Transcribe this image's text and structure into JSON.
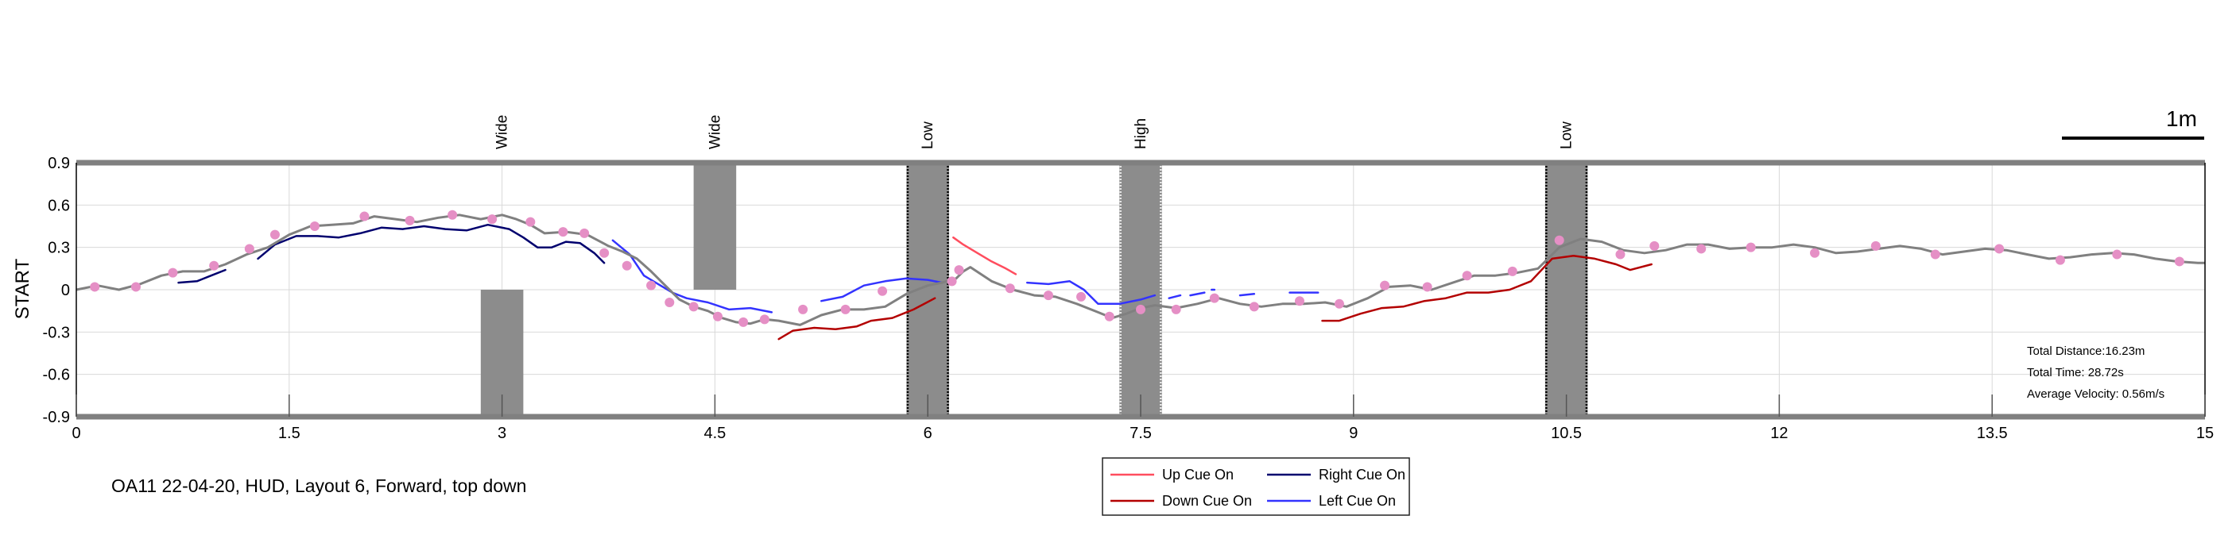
{
  "caption": "OA11 22-04-20, HUD, Layout 6, Forward, top down",
  "scale_bar": {
    "label": "1m"
  },
  "stats": {
    "total_distance": "Total Distance:16.23m",
    "total_time": "Total Time: 28.72s",
    "average_velocity": "Average Velocity: 0.56m/s"
  },
  "colors": {
    "path": "#808080",
    "markers": "#e58fc5",
    "obstacle": "#8c8c8c",
    "up_cue": "#ff4d5e",
    "down_cue": "#b30000",
    "right_cue": "#00006e",
    "left_cue": "#3333ff",
    "boundary": "#808080"
  },
  "chart_data": {
    "type": "line",
    "title": "",
    "xlabel": "",
    "ylabel": "START",
    "xlim": [
      0,
      15
    ],
    "ylim": [
      -0.9,
      0.9
    ],
    "xticks": [
      "0",
      "1.5",
      "3",
      "4.5",
      "6",
      "7.5",
      "9",
      "10.5",
      "12",
      "13.5",
      "15"
    ],
    "xtick_values": [
      0,
      1.5,
      3,
      4.5,
      6,
      7.5,
      9,
      10.5,
      12,
      13.5,
      15
    ],
    "yticks": [
      "0.9",
      "0.6",
      "0.3",
      "0",
      "-0.3",
      "-0.6",
      "-0.9"
    ],
    "ytick_values": [
      0.9,
      0.6,
      0.3,
      0,
      -0.3,
      -0.6,
      -0.9
    ],
    "grid": true,
    "obstacles": [
      {
        "label": "Wide",
        "x": [
          2.85,
          3.15
        ],
        "y": [
          -0.9,
          0.0
        ],
        "style": "plain"
      },
      {
        "label": "Wide",
        "x": [
          4.35,
          4.65
        ],
        "y": [
          0.0,
          0.9
        ],
        "style": "plain"
      },
      {
        "label": "Low",
        "x": [
          5.85,
          6.15
        ],
        "y": [
          -0.9,
          0.9
        ],
        "style": "dotted-black"
      },
      {
        "label": "High",
        "x": [
          7.35,
          7.65
        ],
        "y": [
          -0.9,
          0.9
        ],
        "style": "dotted-white"
      },
      {
        "label": "Low",
        "x": [
          10.35,
          10.65
        ],
        "y": [
          -0.9,
          0.9
        ],
        "style": "dotted-black"
      }
    ],
    "path": {
      "x": [
        0,
        0.15,
        0.3,
        0.45,
        0.6,
        0.75,
        0.9,
        1.05,
        1.2,
        1.35,
        1.5,
        1.65,
        1.8,
        1.95,
        2.1,
        2.25,
        2.4,
        2.55,
        2.7,
        2.85,
        3.0,
        3.1,
        3.2,
        3.3,
        3.45,
        3.6,
        3.75,
        3.85,
        3.95,
        4.05,
        4.15,
        4.25,
        4.35,
        4.45,
        4.55,
        4.65,
        4.75,
        4.85,
        4.95,
        5.1,
        5.25,
        5.4,
        5.55,
        5.7,
        5.85,
        6.0,
        6.1,
        6.2,
        6.25,
        6.3,
        6.45,
        6.6,
        6.75,
        6.9,
        7.05,
        7.2,
        7.3,
        7.4,
        7.5,
        7.6,
        7.75,
        7.9,
        8.05,
        8.2,
        8.35,
        8.5,
        8.65,
        8.8,
        8.95,
        9.1,
        9.25,
        9.4,
        9.55,
        9.7,
        9.85,
        10.0,
        10.15,
        10.3,
        10.45,
        10.6,
        10.75,
        10.9,
        11.05,
        11.2,
        11.35,
        11.5,
        11.65,
        11.8,
        11.95,
        12.1,
        12.25,
        12.4,
        12.55,
        12.7,
        12.85,
        13.0,
        13.15,
        13.3,
        13.45,
        13.6,
        13.75,
        13.9,
        14.05,
        14.2,
        14.35,
        14.5,
        14.65,
        14.8,
        14.95,
        15.0
      ],
      "y": [
        0.0,
        0.03,
        0.0,
        0.04,
        0.1,
        0.13,
        0.13,
        0.18,
        0.25,
        0.3,
        0.39,
        0.45,
        0.46,
        0.47,
        0.52,
        0.5,
        0.48,
        0.51,
        0.53,
        0.5,
        0.53,
        0.5,
        0.46,
        0.4,
        0.41,
        0.39,
        0.31,
        0.27,
        0.22,
        0.13,
        0.03,
        -0.07,
        -0.12,
        -0.15,
        -0.2,
        -0.23,
        -0.24,
        -0.21,
        -0.22,
        -0.25,
        -0.18,
        -0.14,
        -0.14,
        -0.12,
        -0.03,
        0.03,
        0.05,
        0.08,
        0.13,
        0.16,
        0.06,
        0.0,
        -0.04,
        -0.05,
        -0.1,
        -0.16,
        -0.2,
        -0.17,
        -0.13,
        -0.11,
        -0.13,
        -0.1,
        -0.06,
        -0.1,
        -0.12,
        -0.1,
        -0.1,
        -0.09,
        -0.12,
        -0.06,
        0.02,
        0.03,
        0.0,
        0.05,
        0.1,
        0.1,
        0.12,
        0.15,
        0.3,
        0.36,
        0.34,
        0.28,
        0.26,
        0.28,
        0.32,
        0.32,
        0.29,
        0.3,
        0.3,
        0.32,
        0.3,
        0.26,
        0.27,
        0.29,
        0.31,
        0.29,
        0.25,
        0.27,
        0.29,
        0.28,
        0.25,
        0.22,
        0.23,
        0.25,
        0.26,
        0.25,
        0.22,
        0.2,
        0.19,
        0.19
      ]
    },
    "markers": {
      "x": [
        0.13,
        0.42,
        0.68,
        0.97,
        1.22,
        1.4,
        1.68,
        2.03,
        2.35,
        2.65,
        2.93,
        3.2,
        3.43,
        3.58,
        3.72,
        3.88,
        4.05,
        4.18,
        4.35,
        4.52,
        4.7,
        4.85,
        5.12,
        5.42,
        5.68,
        6.17,
        6.22,
        6.58,
        6.85,
        7.08,
        7.28,
        7.5,
        7.75,
        8.02,
        8.3,
        8.62,
        8.9,
        9.22,
        9.52,
        9.8,
        10.12,
        10.45,
        10.88,
        11.12,
        11.45,
        11.8,
        12.25,
        12.68,
        13.1,
        13.55,
        13.98,
        14.38,
        14.82
      ],
      "y": [
        0.02,
        0.02,
        0.12,
        0.17,
        0.29,
        0.39,
        0.45,
        0.52,
        0.49,
        0.53,
        0.5,
        0.48,
        0.41,
        0.4,
        0.26,
        0.17,
        0.03,
        -0.09,
        -0.12,
        -0.19,
        -0.23,
        -0.21,
        -0.14,
        -0.14,
        -0.01,
        0.06,
        0.14,
        0.01,
        -0.04,
        -0.05,
        -0.19,
        -0.14,
        -0.14,
        -0.06,
        -0.12,
        -0.08,
        -0.1,
        0.03,
        0.02,
        0.1,
        0.13,
        0.35,
        0.25,
        0.31,
        0.29,
        0.3,
        0.26,
        0.31,
        0.25,
        0.29,
        0.21,
        0.25,
        0.2
      ]
    },
    "series": [
      {
        "name": "Up Cue On",
        "segments": [
          {
            "x": [
              6.18,
              6.25,
              6.35,
              6.45,
              6.55,
              6.62
            ],
            "y": [
              0.37,
              0.32,
              0.26,
              0.2,
              0.15,
              0.11
            ]
          }
        ]
      },
      {
        "name": "Right Cue On",
        "segments": [
          {
            "x": [
              0.72,
              0.85,
              0.95,
              1.05
            ],
            "y": [
              0.05,
              0.06,
              0.1,
              0.14
            ]
          },
          {
            "x": [
              1.28,
              1.4,
              1.55,
              1.7,
              1.85,
              2.0,
              2.15,
              2.3,
              2.45,
              2.6,
              2.75,
              2.9,
              3.05,
              3.15,
              3.25,
              3.35,
              3.45,
              3.55,
              3.65,
              3.72
            ],
            "y": [
              0.22,
              0.32,
              0.38,
              0.38,
              0.37,
              0.4,
              0.44,
              0.43,
              0.45,
              0.43,
              0.42,
              0.46,
              0.43,
              0.37,
              0.3,
              0.3,
              0.34,
              0.33,
              0.26,
              0.19
            ]
          }
        ]
      },
      {
        "name": "Down Cue On",
        "segments": [
          {
            "x": [
              4.95,
              5.05,
              5.2,
              5.35,
              5.5,
              5.6,
              5.75,
              5.9,
              6.05
            ],
            "y": [
              -0.35,
              -0.29,
              -0.27,
              -0.28,
              -0.26,
              -0.22,
              -0.2,
              -0.14,
              -0.06
            ]
          },
          {
            "x": [
              8.78,
              8.9,
              9.05,
              9.2,
              9.35,
              9.5,
              9.65,
              9.8,
              9.95,
              10.1,
              10.25,
              10.4,
              10.55,
              10.7,
              10.85,
              10.95,
              11.1
            ],
            "y": [
              -0.22,
              -0.22,
              -0.17,
              -0.13,
              -0.12,
              -0.08,
              -0.06,
              -0.02,
              -0.02,
              0.0,
              0.06,
              0.22,
              0.24,
              0.22,
              0.18,
              0.14,
              0.18
            ]
          }
        ]
      },
      {
        "name": "Left Cue On",
        "segments": [
          {
            "x": [
              3.78,
              3.9,
              4.0,
              4.1,
              4.2,
              4.3,
              4.45,
              4.6,
              4.75,
              4.9
            ],
            "y": [
              0.35,
              0.25,
              0.1,
              0.04,
              -0.02,
              -0.06,
              -0.09,
              -0.14,
              -0.13,
              -0.16
            ]
          },
          {
            "x": [
              5.25,
              5.4,
              5.55,
              5.7,
              5.85,
              6.0,
              6.1
            ],
            "y": [
              -0.08,
              -0.05,
              0.03,
              0.06,
              0.08,
              0.07,
              0.05
            ]
          },
          {
            "x": [
              6.7,
              6.85,
              7.0,
              7.1,
              7.2,
              7.35,
              7.5,
              7.6
            ],
            "y": [
              0.05,
              0.04,
              0.06,
              0.0,
              -0.1,
              -0.1,
              -0.07,
              -0.04
            ]
          },
          {
            "x": [
              7.7,
              7.78
            ],
            "y": [
              -0.06,
              -0.04
            ]
          },
          {
            "x": [
              7.85,
              7.95
            ],
            "y": [
              -0.04,
              -0.02
            ]
          },
          {
            "x": [
              8.0,
              8.02
            ],
            "y": [
              0.0,
              0.0
            ]
          },
          {
            "x": [
              8.2,
              8.3
            ],
            "y": [
              -0.04,
              -0.03
            ]
          },
          {
            "x": [
              8.55,
              8.75
            ],
            "y": [
              -0.02,
              -0.02
            ]
          }
        ]
      }
    ],
    "legend": {
      "placement": "bottom-center",
      "entries": [
        "Up Cue On",
        "Right Cue On",
        "Down Cue On",
        "Left Cue On"
      ]
    }
  }
}
